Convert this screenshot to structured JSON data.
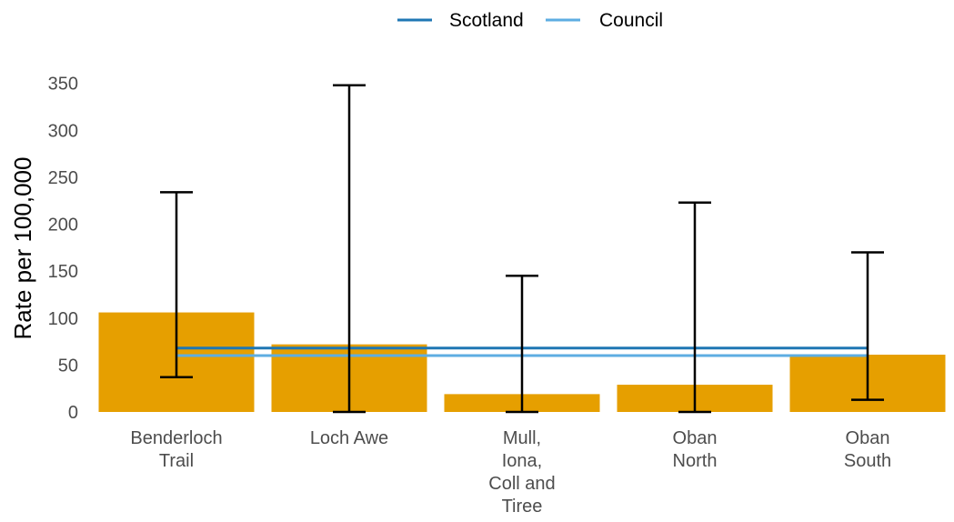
{
  "chart_data": {
    "type": "bar",
    "categories": [
      [
        "Benderloch",
        "Trail"
      ],
      [
        "Loch Awe"
      ],
      [
        "Mull,",
        "Iona,",
        "Coll and",
        "Tiree"
      ],
      [
        "Oban",
        "North"
      ],
      [
        "Oban",
        "South"
      ]
    ],
    "values": [
      106,
      72,
      19,
      29,
      61
    ],
    "error_low": [
      37,
      0,
      0,
      0,
      13
    ],
    "error_high": [
      234,
      348,
      145,
      223,
      170
    ],
    "ylabel": "Rate per 100,000",
    "xlabel": "",
    "ylim": [
      0,
      370
    ],
    "yticks": [
      0,
      50,
      100,
      150,
      200,
      250,
      300,
      350
    ],
    "reference_lines": [
      {
        "name": "Scotland",
        "value": 68,
        "color": "#1f77b4"
      },
      {
        "name": "Council",
        "value": 60,
        "color": "#5dade2"
      }
    ],
    "bar_color": "#e69f00",
    "legend_position": "top",
    "grid": false
  }
}
